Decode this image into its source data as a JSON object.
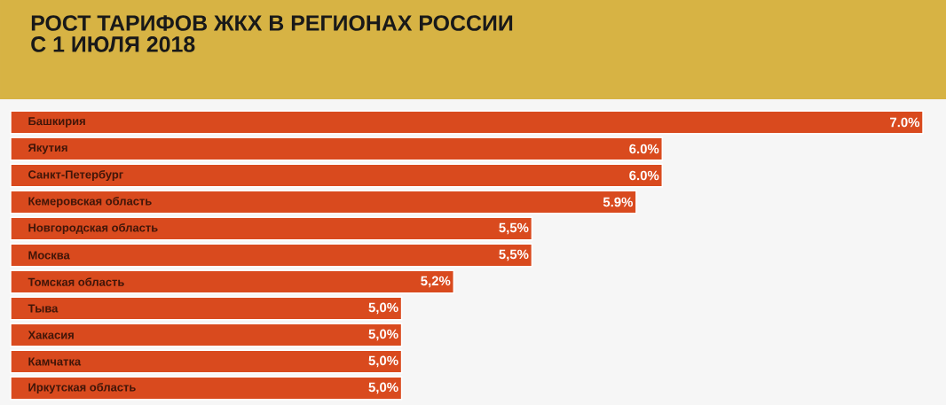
{
  "chart_data": {
    "type": "bar",
    "orientation": "horizontal",
    "title": "РОСТ ТАРИФОВ ЖКХ В РЕГИОНАХ РОССИИ\nС 1 ИЮЛЯ 2018",
    "categories": [
      "Башкирия",
      "Якутия",
      "Санкт-Петербург",
      "Кемеровская область",
      "Новгородская область",
      "Москва",
      "Томская область",
      "Тыва",
      "Хакасия",
      "Камчатка",
      "Иркутская область"
    ],
    "values": [
      7.0,
      6.0,
      6.0,
      5.9,
      5.5,
      5.5,
      5.2,
      5.0,
      5.0,
      5.0,
      5.0
    ],
    "value_labels": [
      "7.0%",
      "6.0%",
      "6.0%",
      "5.9%",
      "5,5%",
      "5,5%",
      "5,2%",
      "5,0%",
      "5,0%",
      "5,0%",
      "5,0%"
    ],
    "color": "#d94a1e",
    "xlim": [
      3.5,
      7.0
    ],
    "tick_labels": false
  }
}
